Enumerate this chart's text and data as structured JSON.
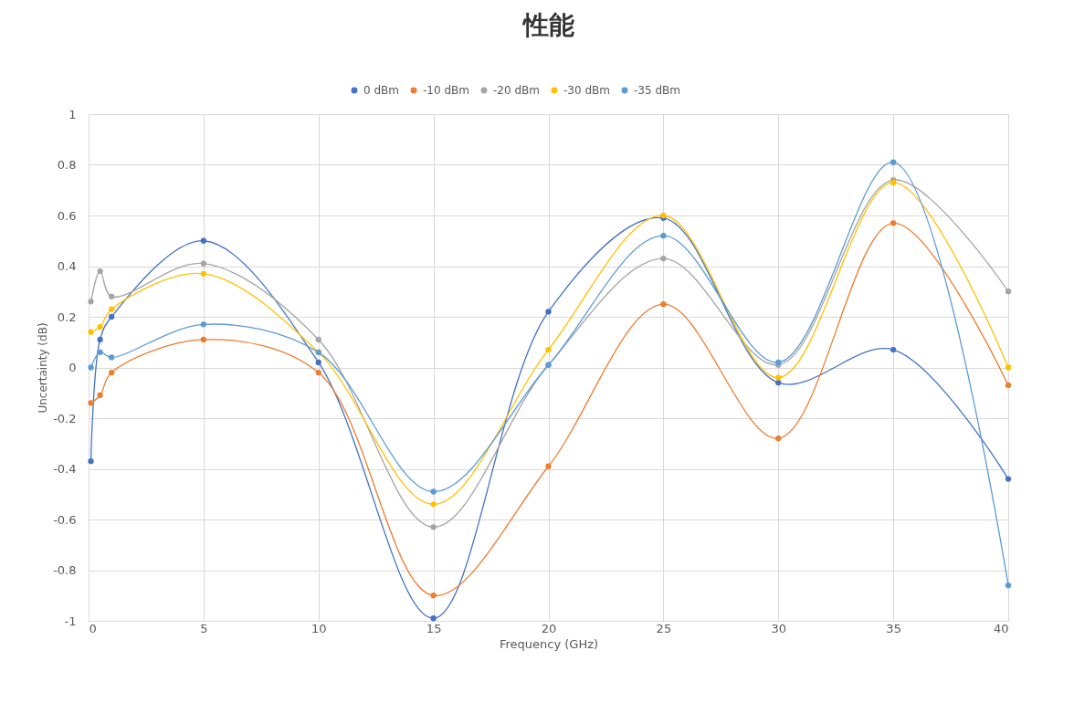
{
  "chart_data": {
    "type": "line",
    "title": "性能",
    "xlabel": "Frequency (GHz)",
    "ylabel": "Uncertainty (dB)",
    "x": [
      0.1,
      0.5,
      1,
      5,
      10,
      15,
      20,
      25,
      30,
      35,
      40
    ],
    "series": [
      {
        "name": "0 dBm",
        "color": "#4472c4",
        "values": [
          -0.37,
          0.11,
          0.2,
          0.5,
          0.02,
          -0.99,
          0.22,
          0.59,
          -0.06,
          0.07,
          -0.44
        ]
      },
      {
        "name": "-10 dBm",
        "color": "#ed7d31",
        "values": [
          -0.14,
          -0.11,
          -0.02,
          0.11,
          -0.02,
          -0.9,
          -0.39,
          0.25,
          -0.28,
          0.57,
          -0.07
        ]
      },
      {
        "name": "-20 dBm",
        "color": "#a5a5a5",
        "values": [
          0.26,
          0.38,
          0.28,
          0.41,
          0.11,
          -0.63,
          0.01,
          0.43,
          0.01,
          0.74,
          0.3
        ]
      },
      {
        "name": "-30 dBm",
        "color": "#ffc000",
        "values": [
          0.14,
          0.16,
          0.23,
          0.37,
          0.06,
          -0.54,
          0.07,
          0.6,
          -0.04,
          0.73,
          0.0
        ]
      },
      {
        "name": "-35 dBm",
        "color": "#5b9bd5",
        "values": [
          0.0,
          0.06,
          0.04,
          0.17,
          0.06,
          -0.49,
          0.01,
          0.52,
          0.02,
          0.81,
          -0.86
        ]
      }
    ],
    "xlim": [
      0,
      40
    ],
    "xticks": [
      0,
      5,
      10,
      15,
      20,
      25,
      30,
      35,
      40
    ],
    "ylim": [
      -1,
      1
    ],
    "yticks": [
      -1,
      -0.8,
      -0.6,
      -0.4,
      -0.2,
      0,
      0.2,
      0.4,
      0.6,
      0.8,
      1
    ],
    "grid": true,
    "legend": "top",
    "marker": "circle"
  }
}
